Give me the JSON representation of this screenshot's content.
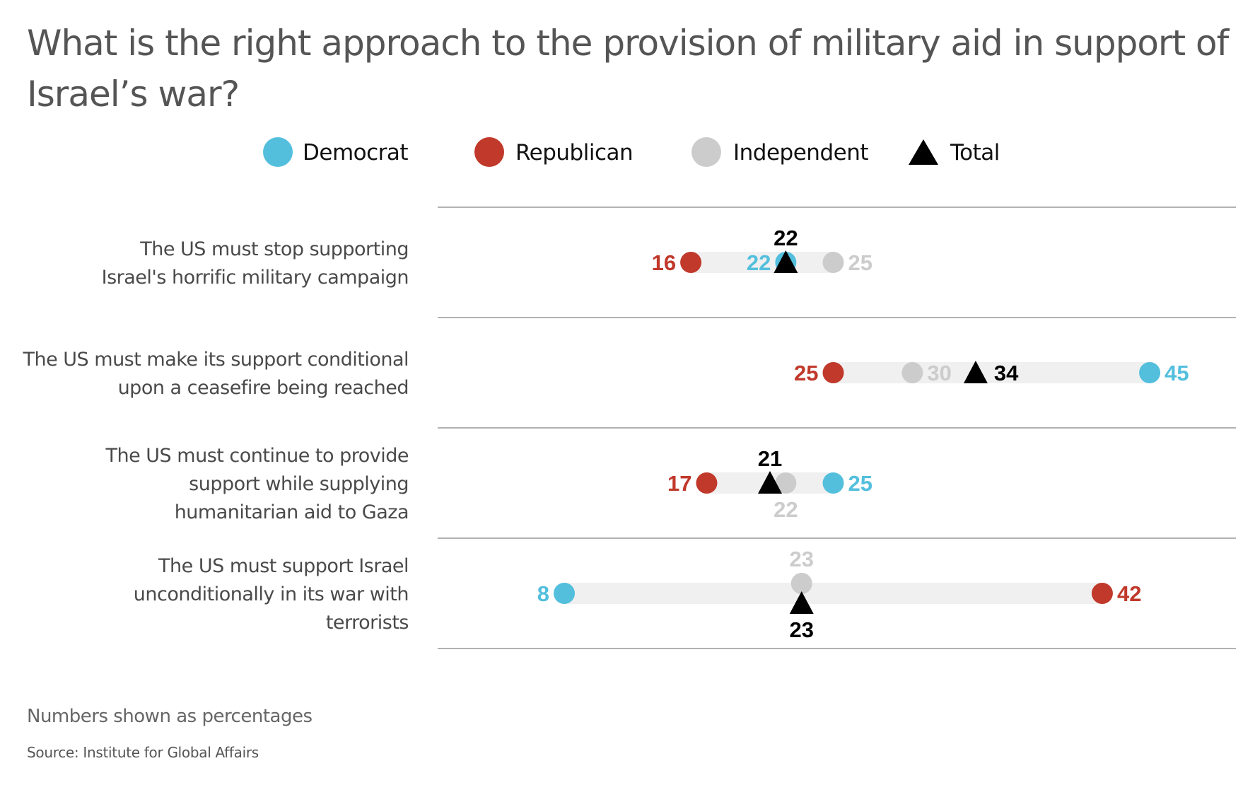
{
  "colors": {
    "democrat": "#53BFDD",
    "republican": "#C0392B",
    "independent": "#CCCCCC",
    "total": "#000000",
    "bar": "#F0F0F0",
    "separator": "#999999"
  },
  "chart_data": {
    "type": "dot-range",
    "title": "What is the right approach to the provision of military aid in support of Israel’s war?",
    "title_lines": [
      "What is the right approach to the provision of military aid in support of",
      "Israel’s war?"
    ],
    "legend": [
      {
        "key": "democrat",
        "label": "Democrat",
        "marker": "circle"
      },
      {
        "key": "republican",
        "label": "Republican",
        "marker": "circle"
      },
      {
        "key": "independent",
        "label": "Independent",
        "marker": "circle"
      },
      {
        "key": "total",
        "label": "Total",
        "marker": "triangle"
      }
    ],
    "legend_position": "top-center",
    "unit": "%",
    "xlim": [
      0,
      50
    ],
    "grid": false,
    "categories": [
      {
        "label_lines": [
          "The US must stop supporting",
          "Israel's horrific military campaign"
        ],
        "democrat": 22,
        "republican": 16,
        "independent": 25,
        "total": 22
      },
      {
        "label_lines": [
          "The US must make its support conditional",
          "upon a ceasefire being reached"
        ],
        "democrat": 45,
        "republican": 25,
        "independent": 30,
        "total": 34
      },
      {
        "label_lines": [
          "The US must continue to provide",
          "support while supplying",
          "humanitarian aid to Gaza"
        ],
        "democrat": 25,
        "republican": 17,
        "independent": 22,
        "total": 21
      },
      {
        "label_lines": [
          "The US must support Israel",
          "unconditionally in its war with",
          "terrorists"
        ],
        "democrat": 8,
        "republican": 42,
        "independent": 23,
        "total": 23
      }
    ],
    "series": [
      {
        "name": "Democrat",
        "values": [
          22,
          45,
          25,
          8
        ]
      },
      {
        "name": "Republican",
        "values": [
          16,
          25,
          17,
          42
        ]
      },
      {
        "name": "Independent",
        "values": [
          25,
          30,
          22,
          23
        ]
      },
      {
        "name": "Total",
        "values": [
          22,
          34,
          21,
          23
        ]
      }
    ],
    "label_placement": [
      {
        "democrat": "left",
        "republican": "left",
        "independent": "right",
        "total": "above"
      },
      {
        "democrat": "right",
        "republican": "left",
        "independent": "right",
        "total": "right"
      },
      {
        "democrat": "right",
        "republican": "left",
        "independent": "below",
        "total": "above"
      },
      {
        "democrat": "left",
        "republican": "right",
        "independent": "above",
        "total": "below"
      }
    ],
    "note": "Numbers shown as percentages",
    "source": "Source: Institute for Global Affairs"
  }
}
